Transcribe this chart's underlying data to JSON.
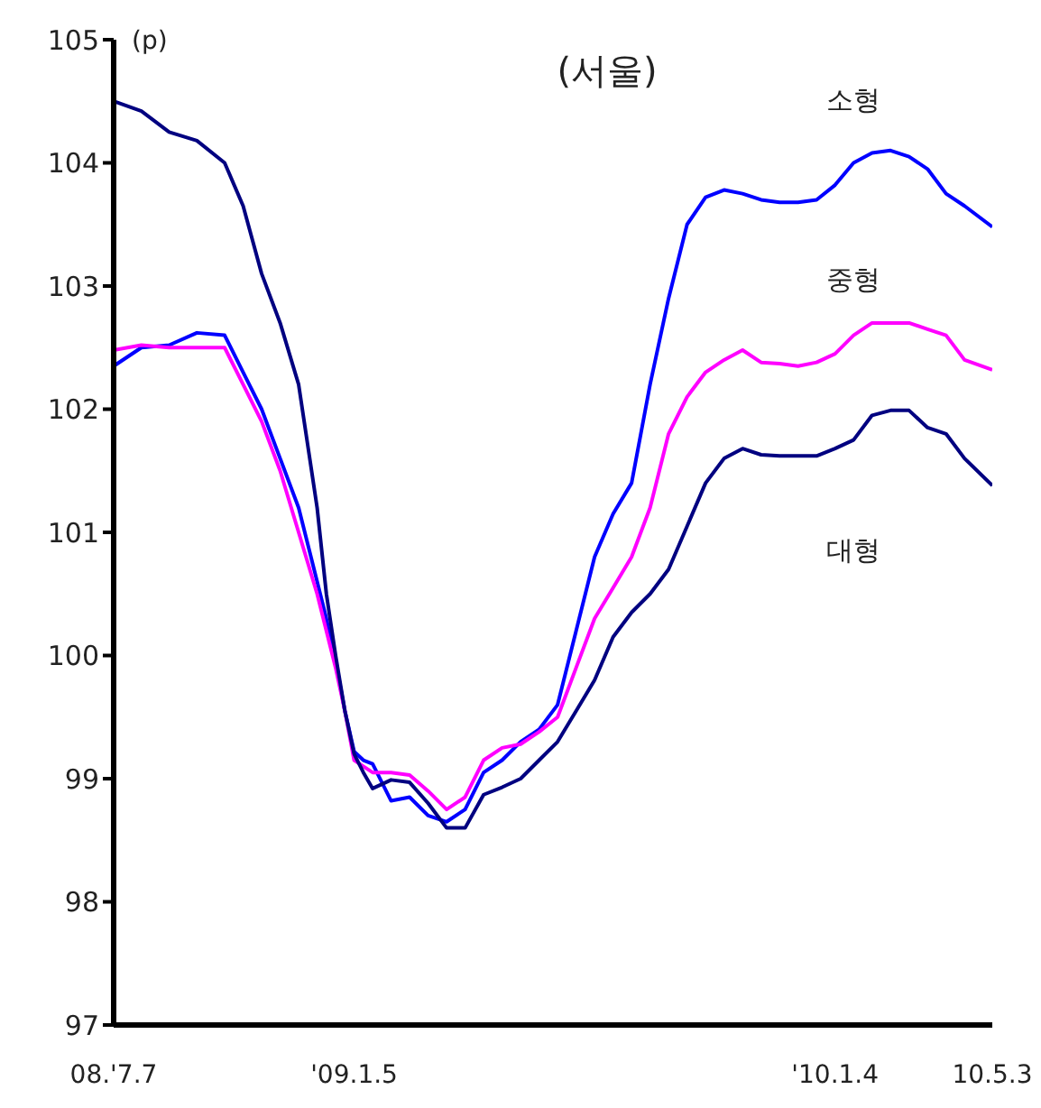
{
  "chart_data": {
    "type": "line",
    "title": "(서울)",
    "ylabel": "(p)",
    "x": [
      "2008-07-07",
      "2008-07-28",
      "2008-08-18",
      "2008-09-08",
      "2008-09-29",
      "2008-10-13",
      "2008-10-27",
      "2008-11-10",
      "2008-11-24",
      "2008-12-08",
      "2008-12-15",
      "2008-12-22",
      "2008-12-29",
      "2009-01-05",
      "2009-01-12",
      "2009-01-19",
      "2009-02-02",
      "2009-02-16",
      "2009-03-02",
      "2009-03-16",
      "2009-03-30",
      "2009-04-13",
      "2009-04-27",
      "2009-05-11",
      "2009-05-25",
      "2009-06-08",
      "2009-06-22",
      "2009-07-06",
      "2009-07-20",
      "2009-08-03",
      "2009-08-17",
      "2009-08-31",
      "2009-09-14",
      "2009-09-28",
      "2009-10-12",
      "2009-10-26",
      "2009-11-09",
      "2009-11-23",
      "2009-12-07",
      "2009-12-21",
      "2010-01-04",
      "2010-01-18",
      "2010-02-01",
      "2010-02-15",
      "2010-03-01",
      "2010-03-15",
      "2010-03-29",
      "2010-04-12",
      "2010-05-03"
    ],
    "series": [
      {
        "name": "소형",
        "color": "#0000ff",
        "values": [
          102.35,
          102.5,
          102.52,
          102.62,
          102.6,
          102.3,
          102.0,
          101.6,
          101.2,
          100.6,
          100.3,
          99.95,
          99.55,
          99.22,
          99.15,
          99.12,
          98.82,
          98.85,
          98.7,
          98.65,
          98.75,
          99.05,
          99.15,
          99.3,
          99.4,
          99.6,
          100.2,
          100.8,
          101.15,
          101.4,
          102.2,
          102.9,
          103.5,
          103.72,
          103.78,
          103.75,
          103.7,
          103.68,
          103.68,
          103.7,
          103.82,
          104.0,
          104.08,
          104.1,
          104.05,
          103.95,
          103.75,
          103.65,
          103.48
        ]
      },
      {
        "name": "중형",
        "color": "#ff00ff",
        "values": [
          102.48,
          102.52,
          102.5,
          102.5,
          102.5,
          102.2,
          101.9,
          101.5,
          101.0,
          100.5,
          100.2,
          99.9,
          99.55,
          99.15,
          99.1,
          99.05,
          99.05,
          99.03,
          98.9,
          98.75,
          98.85,
          99.15,
          99.25,
          99.28,
          99.38,
          99.5,
          99.9,
          100.3,
          100.55,
          100.8,
          101.2,
          101.8,
          102.1,
          102.3,
          102.4,
          102.48,
          102.38,
          102.37,
          102.35,
          102.38,
          102.45,
          102.6,
          102.7,
          102.7,
          102.7,
          102.65,
          102.6,
          102.4,
          102.32
        ]
      },
      {
        "name": "대형",
        "color": "#000080",
        "values": [
          104.5,
          104.42,
          104.25,
          104.18,
          104.0,
          103.65,
          103.1,
          102.7,
          102.2,
          101.2,
          100.5,
          100.0,
          99.55,
          99.2,
          99.05,
          98.92,
          98.99,
          98.97,
          98.8,
          98.6,
          98.6,
          98.87,
          98.93,
          99.0,
          99.15,
          99.3,
          99.55,
          99.8,
          100.15,
          100.35,
          100.5,
          100.7,
          101.05,
          101.4,
          101.6,
          101.68,
          101.63,
          101.62,
          101.62,
          101.62,
          101.68,
          101.75,
          101.95,
          101.99,
          101.99,
          101.85,
          101.8,
          101.6,
          101.38
        ]
      }
    ],
    "xlim": [
      "2008-07-07",
      "2010-05-03"
    ],
    "xticks": [
      {
        "value": "2008-07-07",
        "label": "08.'7.7"
      },
      {
        "value": "2009-01-05",
        "label": "'09.1.5"
      },
      {
        "value": "2010-01-04",
        "label": "'10.1.4"
      },
      {
        "value": "2010-05-03",
        "label": "10.5.3"
      }
    ],
    "ylim": [
      97,
      105
    ],
    "yticks": [
      97,
      98,
      99,
      100,
      101,
      102,
      103,
      104,
      105
    ],
    "grid": false,
    "legend": false,
    "marker": "none",
    "line_style": "solid"
  }
}
